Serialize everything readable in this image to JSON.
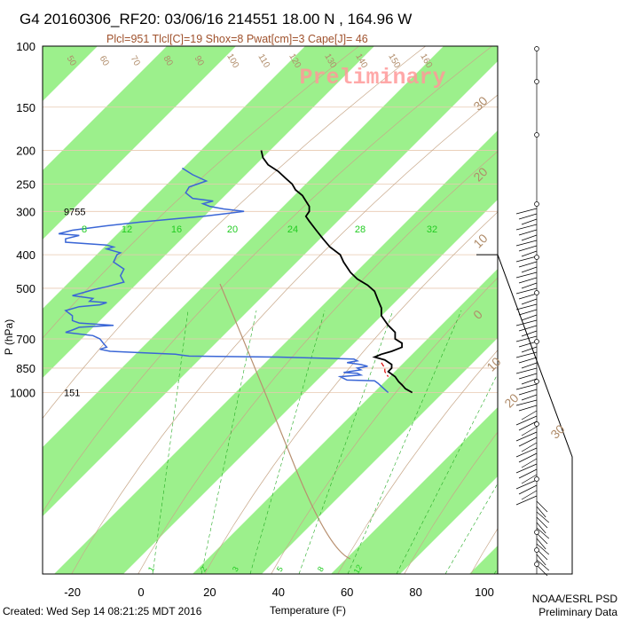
{
  "title": "G4 20160306_RF20: 03/06/16 214551   18.00 N , 164.96 W",
  "subtitle": "Plcl=951 Tlcl[C]=19 Shox=8 Pwat[cm]=3 Cape[J]= 46",
  "watermark": "Preliminary",
  "created": "Created: Wed Sep 14 08:21:25 MDT 2016",
  "credit_line1": "NOAA/ESRL PSD",
  "credit_line2": "Preliminary Data",
  "chart_data": {
    "type": "line",
    "xlabel": "Temperature (F)",
    "ylabel": "P (hPa)",
    "x_ticks": [
      -20,
      0,
      20,
      40,
      60,
      80,
      100
    ],
    "y_ticks": [
      100,
      150,
      200,
      250,
      300,
      400,
      500,
      700,
      850,
      1000
    ],
    "xlim": [
      -28,
      110
    ],
    "ylim": [
      1050,
      100
    ],
    "y_scale": "log",
    "height_labels": [
      {
        "p": 300,
        "text": "9755"
      },
      {
        "p": 1000,
        "text": "151"
      }
    ],
    "mixing_ratio_labels": [
      "8",
      "12",
      "16",
      "20",
      "24",
      "28",
      "32"
    ],
    "mixing_ratio_bottom_labels": [
      "1",
      "2",
      "3",
      "5",
      "8",
      "12"
    ],
    "theta_labels": [
      "50",
      "60",
      "70",
      "80",
      "90",
      "100",
      "110",
      "120",
      "130",
      "140",
      "150",
      "160"
    ],
    "isotherm_labels_right": [
      "30",
      "20",
      "10",
      "0",
      "10",
      "20",
      "30"
    ],
    "colors": {
      "band": "#9cf08c",
      "temperature": "#000000",
      "dewpoint": "#3a66d6",
      "parcel": "#dd0000",
      "label_brown": "#b08c6a",
      "label_green": "#22cc22",
      "watermark": "#ff9999"
    },
    "series": [
      {
        "key": "temperature",
        "points": [
          [
            35,
            200
          ],
          [
            35.5,
            210
          ],
          [
            37,
            220
          ],
          [
            40,
            230
          ],
          [
            42,
            240
          ],
          [
            44,
            250
          ],
          [
            45,
            260
          ],
          [
            47,
            270
          ],
          [
            48,
            280
          ],
          [
            49,
            290
          ],
          [
            49,
            300
          ],
          [
            48,
            310
          ],
          [
            49,
            320
          ],
          [
            51,
            340
          ],
          [
            53,
            360
          ],
          [
            55,
            380
          ],
          [
            58,
            400
          ],
          [
            59,
            420
          ],
          [
            61,
            450
          ],
          [
            63,
            470
          ],
          [
            66,
            490
          ],
          [
            68,
            510
          ],
          [
            69,
            540
          ],
          [
            70,
            570
          ],
          [
            70,
            600
          ],
          [
            72,
            640
          ],
          [
            74,
            670
          ],
          [
            74,
            700
          ],
          [
            76,
            720
          ],
          [
            76,
            740
          ],
          [
            73,
            760
          ],
          [
            70,
            775
          ],
          [
            68,
            790
          ],
          [
            71,
            805
          ],
          [
            73,
            830
          ],
          [
            73,
            850
          ],
          [
            72,
            870
          ],
          [
            74,
            900
          ],
          [
            75,
            930
          ],
          [
            76,
            950
          ],
          [
            77,
            975
          ],
          [
            79,
            1000
          ]
        ]
      },
      {
        "key": "dewpoint",
        "points": [
          [
            12,
            225
          ],
          [
            15,
            235
          ],
          [
            19,
            245
          ],
          [
            14,
            255
          ],
          [
            13,
            265
          ],
          [
            15,
            275
          ],
          [
            21,
            280
          ],
          [
            18,
            285
          ],
          [
            20,
            290
          ],
          [
            24,
            295
          ],
          [
            30,
            300
          ],
          [
            24,
            305
          ],
          [
            18,
            310
          ],
          [
            10,
            315
          ],
          [
            0,
            322
          ],
          [
            -10,
            330
          ],
          [
            -20,
            340
          ],
          [
            -24,
            348
          ],
          [
            -18,
            352
          ],
          [
            -22,
            360
          ],
          [
            -22,
            368
          ],
          [
            -10,
            375
          ],
          [
            -8,
            380
          ],
          [
            -10,
            385
          ],
          [
            -8,
            390
          ],
          [
            -6,
            395
          ],
          [
            -7,
            400
          ],
          [
            -8,
            420
          ],
          [
            -5,
            440
          ],
          [
            -6,
            460
          ],
          [
            -5,
            480
          ],
          [
            -10,
            495
          ],
          [
            -14,
            505
          ],
          [
            -17,
            515
          ],
          [
            -20,
            525
          ],
          [
            -14,
            535
          ],
          [
            -15,
            545
          ],
          [
            -10,
            550
          ],
          [
            -12,
            558
          ],
          [
            -18,
            565
          ],
          [
            -22,
            580
          ],
          [
            -20,
            600
          ],
          [
            -20,
            620
          ],
          [
            -18,
            630
          ],
          [
            -8,
            640
          ],
          [
            -18,
            648
          ],
          [
            -20,
            660
          ],
          [
            -22,
            670
          ],
          [
            -14,
            685
          ],
          [
            -12,
            700
          ],
          [
            -11,
            720
          ],
          [
            -10,
            740
          ],
          [
            -12,
            750
          ],
          [
            -9,
            760
          ],
          [
            4,
            770
          ],
          [
            10,
            775
          ],
          [
            12,
            780
          ],
          [
            14,
            785
          ],
          [
            40,
            790
          ],
          [
            62,
            800
          ],
          [
            63,
            810
          ],
          [
            60,
            820
          ],
          [
            64,
            830
          ],
          [
            66,
            840
          ],
          [
            63,
            850
          ],
          [
            64,
            860
          ],
          [
            59,
            875
          ],
          [
            63,
            880
          ],
          [
            64,
            890
          ],
          [
            58,
            900
          ],
          [
            60,
            920
          ],
          [
            68,
            925
          ],
          [
            69,
            940
          ],
          [
            70,
            960
          ],
          [
            71,
            980
          ],
          [
            72,
            1000
          ]
        ]
      },
      {
        "key": "parcel",
        "points": [
          [
            70,
            820
          ],
          [
            71,
            850
          ],
          [
            71,
            870
          ],
          [
            72,
            900
          ]
        ]
      }
    ]
  }
}
